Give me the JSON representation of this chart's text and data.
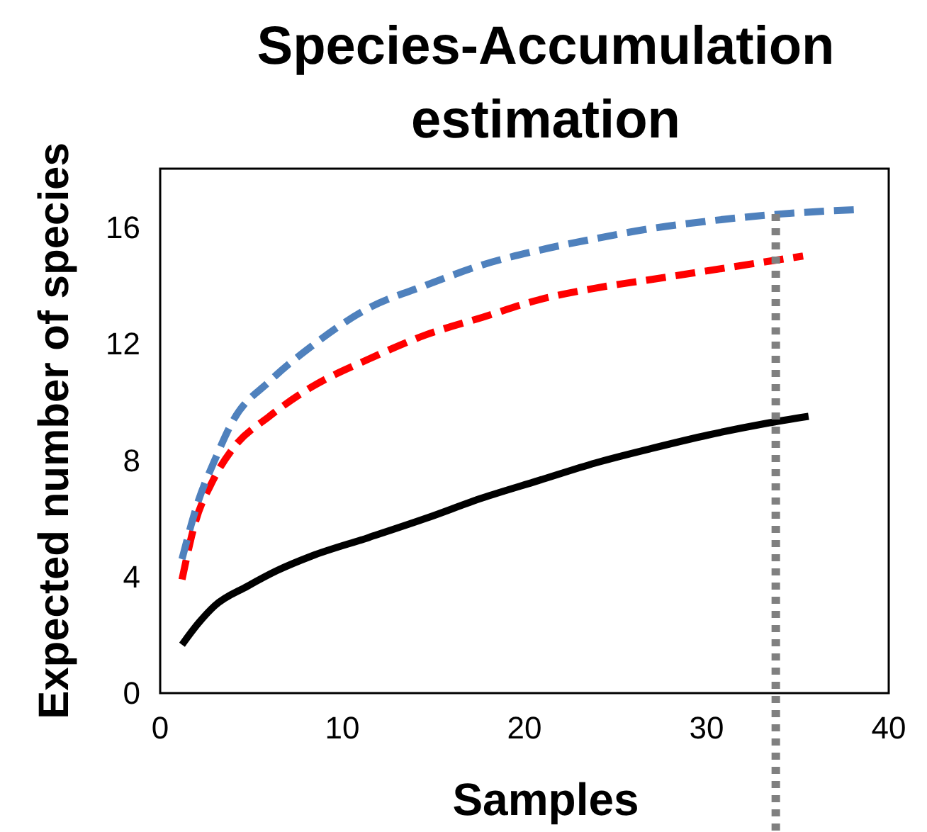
{
  "chart_data": {
    "type": "line",
    "title": "Species-Accumulation estimation",
    "xlabel": "Samples",
    "ylabel": "Expected number of species",
    "xlim": [
      0,
      40
    ],
    "ylim": [
      0,
      18
    ],
    "xticks": [
      0,
      10,
      20,
      30,
      40
    ],
    "yticks": [
      0,
      4,
      8,
      12,
      16
    ],
    "grid": false,
    "series": [
      {
        "color": "#000000",
        "line_style": "solid",
        "x": [
          1.2,
          2.1,
          3.0,
          4.8,
          6.4,
          8.3,
          11.4,
          14.6,
          17.7,
          20.8,
          23.9,
          27.0,
          30.1,
          33.2,
          35.6
        ],
        "values": [
          1.66,
          2.4,
          3.0,
          3.67,
          4.2,
          4.7,
          5.33,
          6.0,
          6.7,
          7.3,
          7.9,
          8.4,
          8.86,
          9.25,
          9.5
        ]
      },
      {
        "color": "#ff0000",
        "line_style": "dashed",
        "x": [
          1.2,
          1.9,
          2.9,
          4.0,
          6.0,
          8.3,
          11.4,
          14.6,
          17.7,
          20.8,
          23.9,
          27.0,
          30.1,
          33.2,
          35.3
        ],
        "values": [
          3.9,
          5.8,
          7.3,
          8.4,
          9.5,
          10.5,
          11.45,
          12.3,
          12.9,
          13.5,
          13.9,
          14.2,
          14.5,
          14.8,
          15.0
        ]
      },
      {
        "color": "#4f81bd",
        "line_style": "dashed",
        "x": [
          1.2,
          2.1,
          3.0,
          4.0,
          6.0,
          8.3,
          11.4,
          14.6,
          17.7,
          20.8,
          23.9,
          27.0,
          30.1,
          33.2,
          38.4
        ],
        "values": [
          4.6,
          6.6,
          8.0,
          9.35,
          10.7,
          11.9,
          13.2,
          14.0,
          14.7,
          15.2,
          15.6,
          15.95,
          16.2,
          16.4,
          16.6
        ]
      }
    ],
    "ref_lines": [
      {
        "axis": "x",
        "value": 33.8,
        "color": "#808080",
        "line_style": "dotted"
      }
    ]
  }
}
